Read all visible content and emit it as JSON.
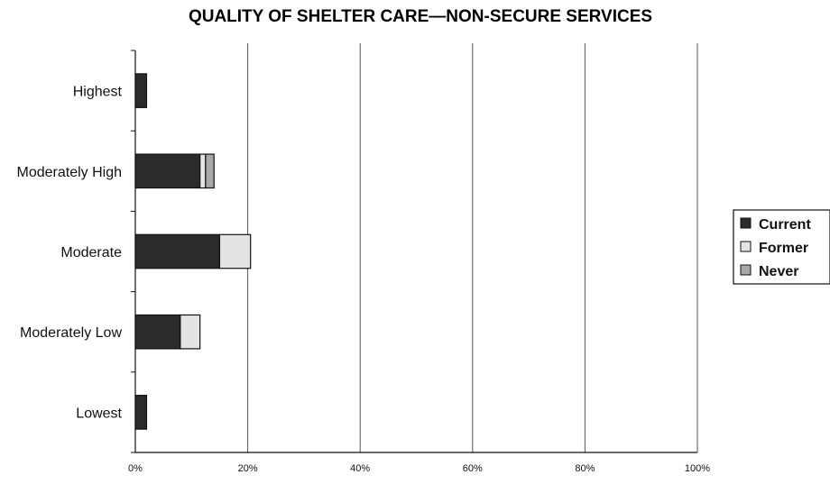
{
  "chart_data": {
    "type": "bar",
    "orientation": "horizontal",
    "stacked": true,
    "title": "QUALITY OF SHELTER CARE—NON-SECURE SERVICES",
    "xlabel": "",
    "ylabel": "",
    "categories": [
      "Highest",
      "Moderately High",
      "Moderate",
      "Moderately Low",
      "Lowest"
    ],
    "series": [
      {
        "name": "Current",
        "values": [
          2,
          11.5,
          15,
          8,
          2
        ],
        "color": "#2b2b2b"
      },
      {
        "name": "Former",
        "values": [
          0,
          1,
          5.5,
          3.5,
          0
        ],
        "color": "#e4e4e4"
      },
      {
        "name": "Never",
        "values": [
          0,
          1.5,
          0,
          0,
          0
        ],
        "color": "#a8a8a8"
      }
    ],
    "xlim": [
      0,
      100
    ],
    "xticks": [
      "0%",
      "20%",
      "40%",
      "60%",
      "80%",
      "100%"
    ],
    "grid": true,
    "legend_position": "right"
  }
}
